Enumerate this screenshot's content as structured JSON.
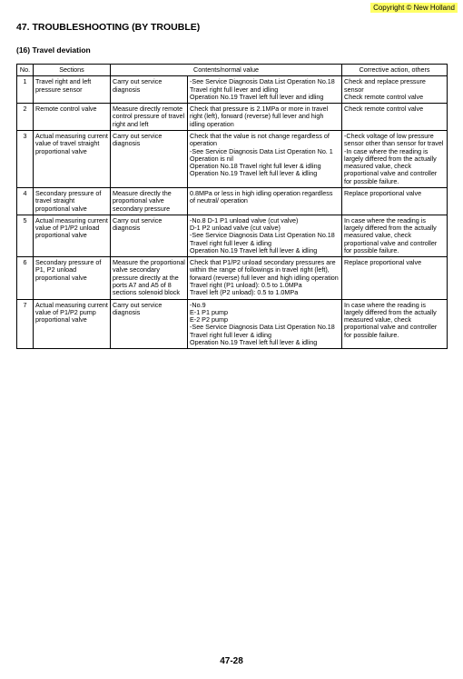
{
  "copyright": "Copyright © New Holland",
  "heading": "47.  TROUBLESHOOTING (BY TROUBLE)",
  "subheading": "(16) Travel deviation",
  "footer": "47-28",
  "columns": {
    "no": "No.",
    "sections": "Sections",
    "contents": "Contents/normal value",
    "corrective": "Corrective action, others"
  },
  "rows": [
    {
      "no": "1",
      "section": "Travel right and left pressure sensor",
      "measure": "Carry out service diagnosis",
      "contents": "-See Service Diagnosis Data List Operation No.18 Travel right full lever and idling\nOperation No.19 Travel left full lever and idling",
      "corrective": "Check and replace pressure sensor\nCheck remote control valve"
    },
    {
      "no": "2",
      "section": "Remote control valve",
      "measure": "Measure directly remote control pressure of travel right and left",
      "contents": "Check that pressure is 2.1MPa or more in travel right (left), forward (reverse) full lever and high idling operation",
      "corrective": "Check remote control valve"
    },
    {
      "no": "3",
      "section": "Actual measuring current value of travel straight proportional valve",
      "measure": "Carry out service diagnosis",
      "contents": "Check that the value is not change regardless of operation\n-See Service Diagnosis Data List Operation No. 1 Operation is nil\nOperation No.18 Travel right full lever & idling\nOperation No.19 Travel left full lever & idling",
      "corrective": "-Check voltage of low pressure sensor other than sensor for travel\n-In case where the reading is largely differed from the actually measured value, check proportional valve and controller for possible failure."
    },
    {
      "no": "4",
      "section": "Secondary pressure of travel straight proportional valve",
      "measure": "Measure directly the proportional valve secondary pressure",
      "contents": "0.8MPa or less in high idling operation regardless of neutral/ operation",
      "corrective": "Replace proportional valve"
    },
    {
      "no": "5",
      "section": "Actual measuring current value of P1/P2 unload proportional valve",
      "measure": "Carry out service diagnosis",
      "contents": "-No.8 D-1 P1 unload valve (cut valve)\nD-1 P2 unload valve (cut valve)\n-See Service Diagnosis Data List Operation No.18 Travel right full lever & idling\nOperation No.19 Travel left full lever & idling",
      "corrective": "In case where the reading is largely differed from the actually measured value, check proportional valve and controller for possible failure."
    },
    {
      "no": "6",
      "section": "Secondary pressure of P1, P2 unload proportional valve",
      "measure": "Measure the proportional valve secondary pressure directly at the ports A7 and A5 of 8 sections solenoid block",
      "contents": "Check that P1/P2 unload secondary pressures are within the range of followings in travel right (left), forward (reverse) full lever and high idling operation\nTravel right (P1 unload): 0.5 to 1.0MPa\nTravel left (P2 unload): 0.5 to 1.0MPa",
      "corrective": "Replace proportional valve"
    },
    {
      "no": "7",
      "section": "Actual measuring current value of P1/P2 pump proportional valve",
      "measure": "Carry out service diagnosis",
      "contents": "-No.9\nE-1 P1 pump\nE-2 P2 pump\n-See Service Diagnosis Data List Operation No.18 Travel right full lever & idling\nOperation No.19 Travel left full lever & idling",
      "corrective": "In case where the reading is largely differed from the actually measured value, check proportional valve and controller for possible failure."
    }
  ]
}
